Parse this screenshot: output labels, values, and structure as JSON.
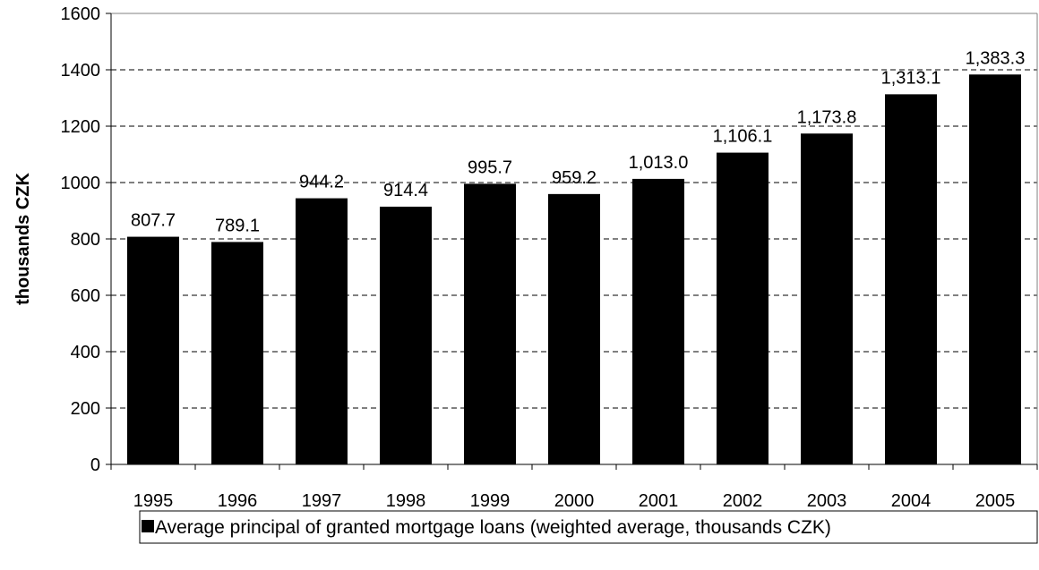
{
  "chart_data": {
    "type": "bar",
    "title": "",
    "xlabel": "",
    "ylabel": "thousands CZK",
    "ylim": [
      0,
      1600
    ],
    "yticks": [
      0,
      200,
      400,
      600,
      800,
      1000,
      1200,
      1400,
      1600
    ],
    "grid": "horizontal dashed",
    "legend_position": "bottom",
    "categories": [
      "1995",
      "1996",
      "1997",
      "1998",
      "1999",
      "2000",
      "2001",
      "2002",
      "2003",
      "2004",
      "2005"
    ],
    "series": [
      {
        "name": "Average principal of granted mortgage loans (weighted average, thousands CZK)",
        "color": "#000000",
        "values": [
          807.7,
          789.1,
          944.2,
          914.4,
          995.7,
          959.2,
          1013.0,
          1106.1,
          1173.8,
          1313.1,
          1383.3
        ],
        "labels": [
          "807.7",
          "789.1",
          "944.2",
          "914.4",
          "995.7",
          "959.2",
          "1,013.0",
          "1,106.1",
          "1,173.8",
          "1,313.1",
          "1,383.3"
        ]
      }
    ]
  }
}
